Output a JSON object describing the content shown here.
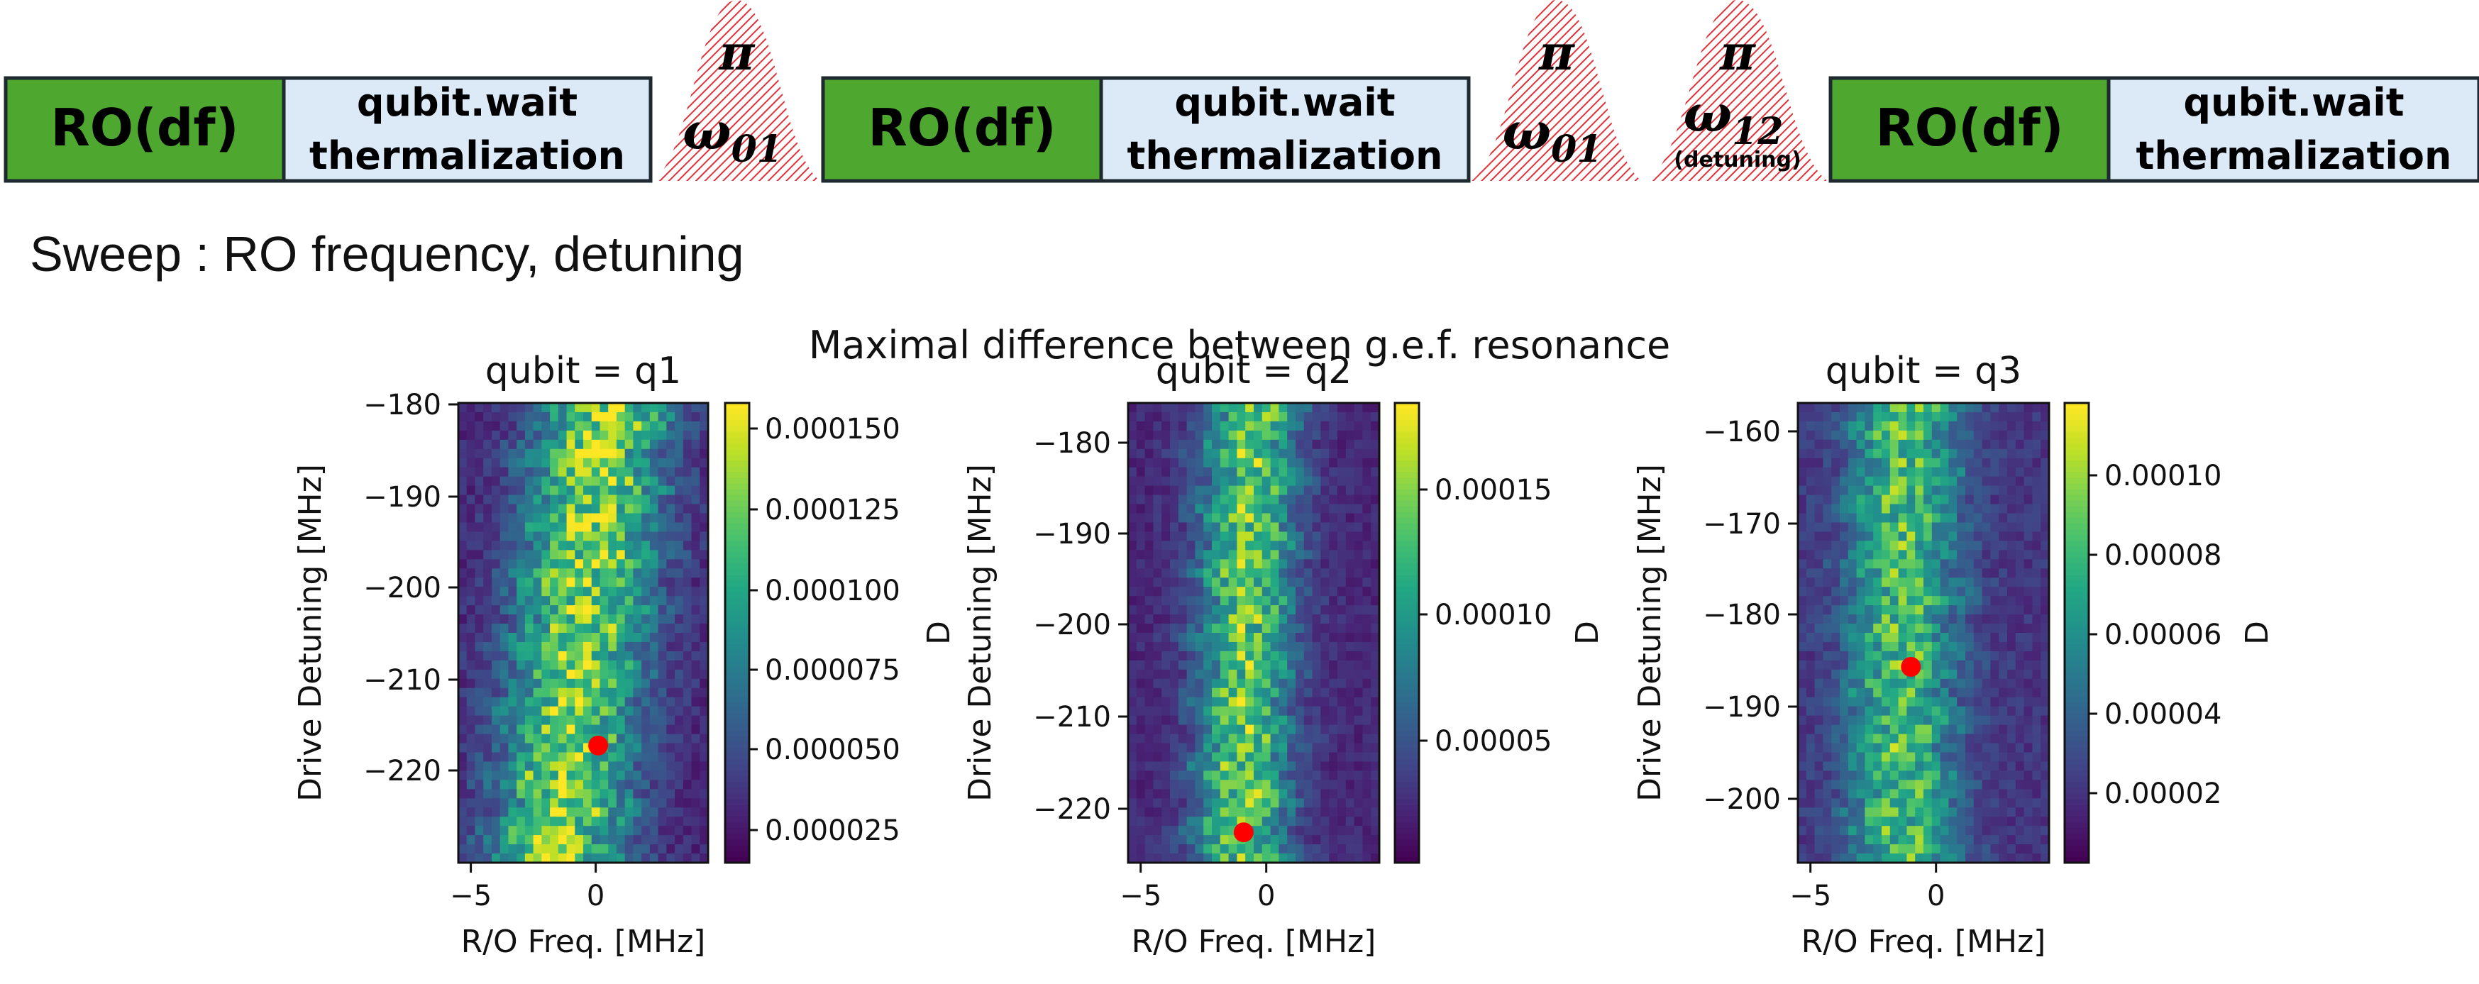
{
  "sequence": {
    "blocks": [
      {
        "kind": "ro",
        "label": "RO(df)"
      },
      {
        "kind": "wait",
        "line1": "qubit.wait",
        "line2": "thermalization"
      },
      {
        "kind": "pulse",
        "top": "π",
        "bottom": "ω",
        "sub": "01",
        "note": ""
      },
      {
        "kind": "ro",
        "label": "RO(df)"
      },
      {
        "kind": "wait",
        "line1": "qubit.wait",
        "line2": "thermalization"
      },
      {
        "kind": "pulse",
        "top": "π",
        "bottom": "ω",
        "sub": "01",
        "note": ""
      },
      {
        "kind": "pulse",
        "top": "π",
        "bottom": "ω",
        "sub": "12",
        "note": "(detuning)"
      },
      {
        "kind": "ro",
        "label": "RO(df)"
      },
      {
        "kind": "wait",
        "line1": "qubit.wait",
        "line2": "thermalization"
      }
    ],
    "colors": {
      "ro": "#4ea72e",
      "wait": "#dce9f6",
      "pulse": "#e0323a",
      "border": "#1e2a30"
    }
  },
  "sweep_label": "Sweep : RO frequency, detuning",
  "figure_title": "Maximal difference between g.e.f. resonance",
  "chart_data": [
    {
      "type": "heatmap",
      "title": "qubit = q1",
      "xlabel": "R/O Freq. [MHz]",
      "ylabel": "Drive Detuning [MHz]",
      "colorbar_label": "D",
      "xlim": [
        -5.5,
        4.5
      ],
      "ylim": [
        -230,
        -179
      ],
      "xticks": [
        -5,
        0
      ],
      "yticks": [
        -180,
        -190,
        -200,
        -210,
        -220
      ],
      "colorbar_ticks": [
        "0.000025",
        "0.000050",
        "0.000075",
        "0.000100",
        "0.000125",
        "0.000150"
      ],
      "clim": [
        1.2e-05,
        0.000162
      ],
      "ridge": {
        "x_at_top": 0.3,
        "x_at_bottom": -1.5,
        "width": 1.9,
        "peak": 0.000145,
        "base": 3e-05
      },
      "marker": {
        "x": 0.1,
        "y": -217,
        "color": "#ff0000"
      }
    },
    {
      "type": "heatmap",
      "title": "qubit = q2",
      "xlabel": "R/O Freq. [MHz]",
      "ylabel": "Drive Detuning [MHz]",
      "colorbar_label": "D",
      "xlim": [
        -5.5,
        4.5
      ],
      "ylim": [
        -226,
        -176
      ],
      "xticks": [
        -5,
        0
      ],
      "yticks": [
        -180,
        -190,
        -200,
        -210,
        -220
      ],
      "colorbar_ticks": [
        "0.00005",
        "0.00010",
        "0.00015"
      ],
      "clim": [
        8.5e-06,
        0.000183
      ],
      "ridge": {
        "x_at_top": -0.6,
        "x_at_bottom": -1.0,
        "width": 1.3,
        "peak": 0.00015,
        "base": 3e-05
      },
      "marker": {
        "x": -0.9,
        "y": -222.7,
        "color": "#ff0000"
      }
    },
    {
      "type": "heatmap",
      "title": "qubit = q3",
      "xlabel": "R/O Freq. [MHz]",
      "ylabel": "Drive Detuning [MHz]",
      "colorbar_label": "D",
      "xlim": [
        -5.5,
        4.5
      ],
      "ylim": [
        -207,
        -157
      ],
      "xticks": [
        -5,
        0
      ],
      "yticks": [
        -160,
        -170,
        -180,
        -190,
        -200
      ],
      "colorbar_ticks": [
        "0.00002",
        "0.00004",
        "0.00006",
        "0.00008",
        "0.00010"
      ],
      "clim": [
        3e-06,
        0.000118
      ],
      "ridge": {
        "x_at_top": -1.2,
        "x_at_bottom": -1.4,
        "width": 1.5,
        "peak": 9e-05,
        "base": 2.2e-05
      },
      "marker": {
        "x": -1.0,
        "y": -185.7,
        "color": "#ff0000"
      }
    }
  ]
}
